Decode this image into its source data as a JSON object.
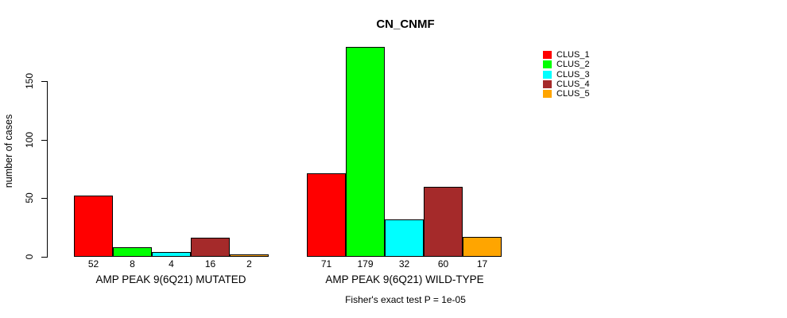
{
  "chart_data": {
    "type": "bar",
    "title": "CN_CNMF",
    "ylabel": "number of cases",
    "xlabel": "",
    "y_ticks": [
      0,
      50,
      100,
      150
    ],
    "ylim": [
      0,
      179
    ],
    "grid": false,
    "legend_position": "right",
    "categories": [
      "AMP PEAK 9(6Q21) MUTATED",
      "AMP PEAK 9(6Q21) WILD-TYPE"
    ],
    "series": [
      {
        "name": "CLUS_1",
        "color": "#FF0000",
        "values": [
          52,
          71
        ]
      },
      {
        "name": "CLUS_2",
        "color": "#00FF00",
        "values": [
          8,
          179
        ]
      },
      {
        "name": "CLUS_3",
        "color": "#00FFFF",
        "values": [
          4,
          32
        ]
      },
      {
        "name": "CLUS_4",
        "color": "#A52A2A",
        "values": [
          16,
          60
        ]
      },
      {
        "name": "CLUS_5",
        "color": "#FFA500",
        "values": [
          2,
          17
        ]
      }
    ],
    "annotation": "Fisher's exact test P = 1e-05"
  }
}
